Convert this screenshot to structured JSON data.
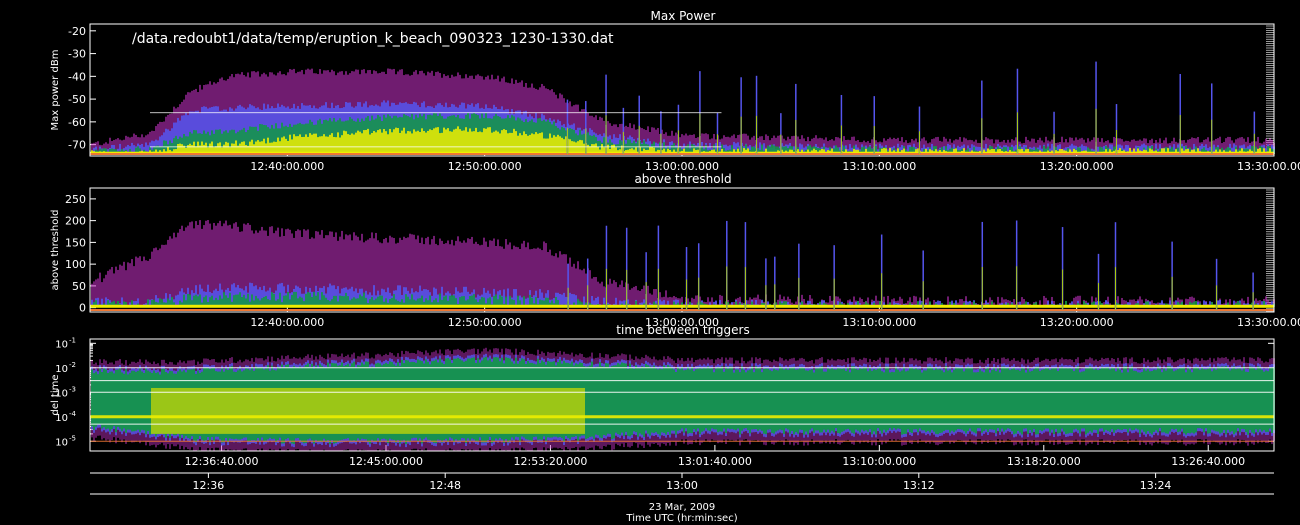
{
  "figure": {
    "date_label": "23 Mar, 2009",
    "time_axis_title": "Time UTC (hr:min:sec)"
  },
  "colors": {
    "background": "#000000",
    "axes": "#ffffff",
    "magenta": "#cc33cc",
    "blue": "#5555ee",
    "green": "#119944",
    "yellowgreen": "#aacc11",
    "yellow": "#eeee00",
    "orange": "#ee7733",
    "threshold_line": "#ffffff"
  },
  "chart_data": [
    {
      "id": "max-power",
      "type": "scatter",
      "title": "Max Power",
      "annotation": "/data.redoubt1/data/temp/eruption_k_beach_090323_1230-1330.dat",
      "ylabel": "Max power dBm",
      "ylim": [
        -75,
        -17
      ],
      "yticks": [
        -70,
        -60,
        -50,
        -40,
        -30,
        -20
      ],
      "y_scale": "linear",
      "x_range": [
        "12:30:00",
        "13:30:00"
      ],
      "xtick_labels": [
        "12:40:00.000",
        "12:50:00.000",
        "13:00:00.000",
        "13:10:00.000",
        "13:20:00.000",
        "13:30:00.000"
      ],
      "xtick_times": [
        "12:40:00",
        "12:50:00",
        "13:00:00",
        "13:10:00",
        "13:20:00",
        "13:30:00"
      ],
      "reference_lines": [
        -71,
        -56
      ],
      "envelope": {
        "times": [
          "12:30",
          "12:33",
          "12:35",
          "12:37",
          "12:40",
          "12:45",
          "12:50",
          "12:53",
          "12:56",
          "13:00",
          "13:10",
          "13:20",
          "13:30"
        ],
        "magenta_top": [
          -70,
          -65,
          -47,
          -40,
          -38,
          -38,
          -40,
          -45,
          -60,
          -66,
          -68,
          -68,
          -68
        ],
        "blue_top": [
          -72,
          -70,
          -55,
          -54,
          -53,
          -52,
          -53,
          -58,
          -66,
          -70,
          -71,
          -71,
          -71
        ],
        "green_top": [
          -73,
          -72,
          -65,
          -64,
          -61,
          -58,
          -57,
          -60,
          -68,
          -71,
          -72,
          -72,
          -72
        ],
        "yellow_top": [
          -74,
          -74,
          -70,
          -70,
          -67,
          -64,
          -63,
          -66,
          -71,
          -73,
          -73,
          -73,
          -73
        ]
      },
      "spike_times": [
        "12:54",
        "12:55",
        "12:56",
        "12:57",
        "12:58",
        "12:59",
        "13:00",
        "13:01",
        "13:02",
        "13:03",
        "13:04",
        "13:05",
        "13:06",
        "13:08",
        "13:10",
        "13:12",
        "13:15",
        "13:17",
        "13:19",
        "13:21",
        "13:22",
        "13:25",
        "13:27",
        "13:29"
      ]
    },
    {
      "id": "above-threshold",
      "type": "scatter",
      "title": "above threshold",
      "ylabel": "above threshold",
      "ylim": [
        -10,
        275
      ],
      "yticks": [
        0,
        50,
        100,
        150,
        200,
        250
      ],
      "y_scale": "linear",
      "x_range": [
        "12:30:00",
        "13:30:00"
      ],
      "xtick_labels": [
        "12:40:00.000",
        "12:50:00.000",
        "13:00:00.000",
        "13:10:00.000",
        "13:20:00.000",
        "13:30:00.000"
      ],
      "xtick_times": [
        "12:40:00",
        "12:50:00",
        "13:00:00",
        "13:10:00",
        "13:20:00",
        "13:30:00"
      ],
      "envelope": {
        "times": [
          "12:30",
          "12:33",
          "12:35",
          "12:37",
          "12:40",
          "12:45",
          "12:50",
          "12:53",
          "12:56",
          "13:00",
          "13:10",
          "13:20",
          "13:30"
        ],
        "magenta_top": [
          60,
          120,
          190,
          190,
          170,
          160,
          150,
          140,
          60,
          20,
          15,
          15,
          15
        ],
        "blue_top": [
          10,
          15,
          40,
          45,
          45,
          40,
          35,
          30,
          12,
          6,
          5,
          5,
          5
        ],
        "green_top": [
          5,
          8,
          20,
          25,
          25,
          22,
          20,
          16,
          6,
          3,
          3,
          3,
          3
        ]
      },
      "spike_times": [
        "12:54",
        "12:55",
        "12:56",
        "12:57",
        "12:58",
        "12:59",
        "13:00",
        "13:01",
        "13:02",
        "13:03",
        "13:04",
        "13:05",
        "13:06",
        "13:08",
        "13:10",
        "13:12",
        "13:15",
        "13:17",
        "13:19",
        "13:21",
        "13:22",
        "13:25",
        "13:27",
        "13:29"
      ]
    },
    {
      "id": "time-between-triggers",
      "type": "scatter",
      "title": "time between triggers",
      "ylabel": "del time",
      "y_scale": "log",
      "ylim": [
        4e-06,
        0.15
      ],
      "yticks_exponent": [
        -5,
        -4,
        -3,
        -2,
        -1
      ],
      "x_range": [
        "12:30:00",
        "13:30:00"
      ],
      "xtick_labels": [
        "12:36:40.000",
        "12:45:00.000",
        "12:53:20.000",
        "13:01:40.000",
        "13:10:00.000",
        "13:18:20.000",
        "13:26:40.000"
      ],
      "xtick_times": [
        "12:36:40",
        "12:45:00",
        "12:53:20",
        "13:01:40",
        "13:10:00",
        "13:18:20",
        "13:26:40"
      ],
      "horizontal_bands": [
        0.01,
        0.003,
        0.001,
        0.0001,
        5e-05,
        1e-05
      ],
      "envelope": {
        "times": [
          "12:30",
          "12:35",
          "12:40",
          "12:45",
          "12:50",
          "12:55",
          "13:00",
          "13:10",
          "13:20",
          "13:30"
        ],
        "green_low": [
          3e-05,
          1e-05,
          8e-06,
          8e-06,
          9e-06,
          1e-05,
          2e-05,
          2e-05,
          2e-05,
          2e-05
        ],
        "green_high": [
          0.01,
          0.01,
          0.015,
          0.02,
          0.03,
          0.02,
          0.012,
          0.012,
          0.012,
          0.012
        ]
      }
    }
  ],
  "bottom_axis": {
    "tick_labels": [
      "12:36",
      "12:48",
      "13:00",
      "13:12",
      "13:24"
    ],
    "tick_times": [
      "12:36",
      "12:48",
      "13:00",
      "13:12",
      "13:24"
    ]
  }
}
